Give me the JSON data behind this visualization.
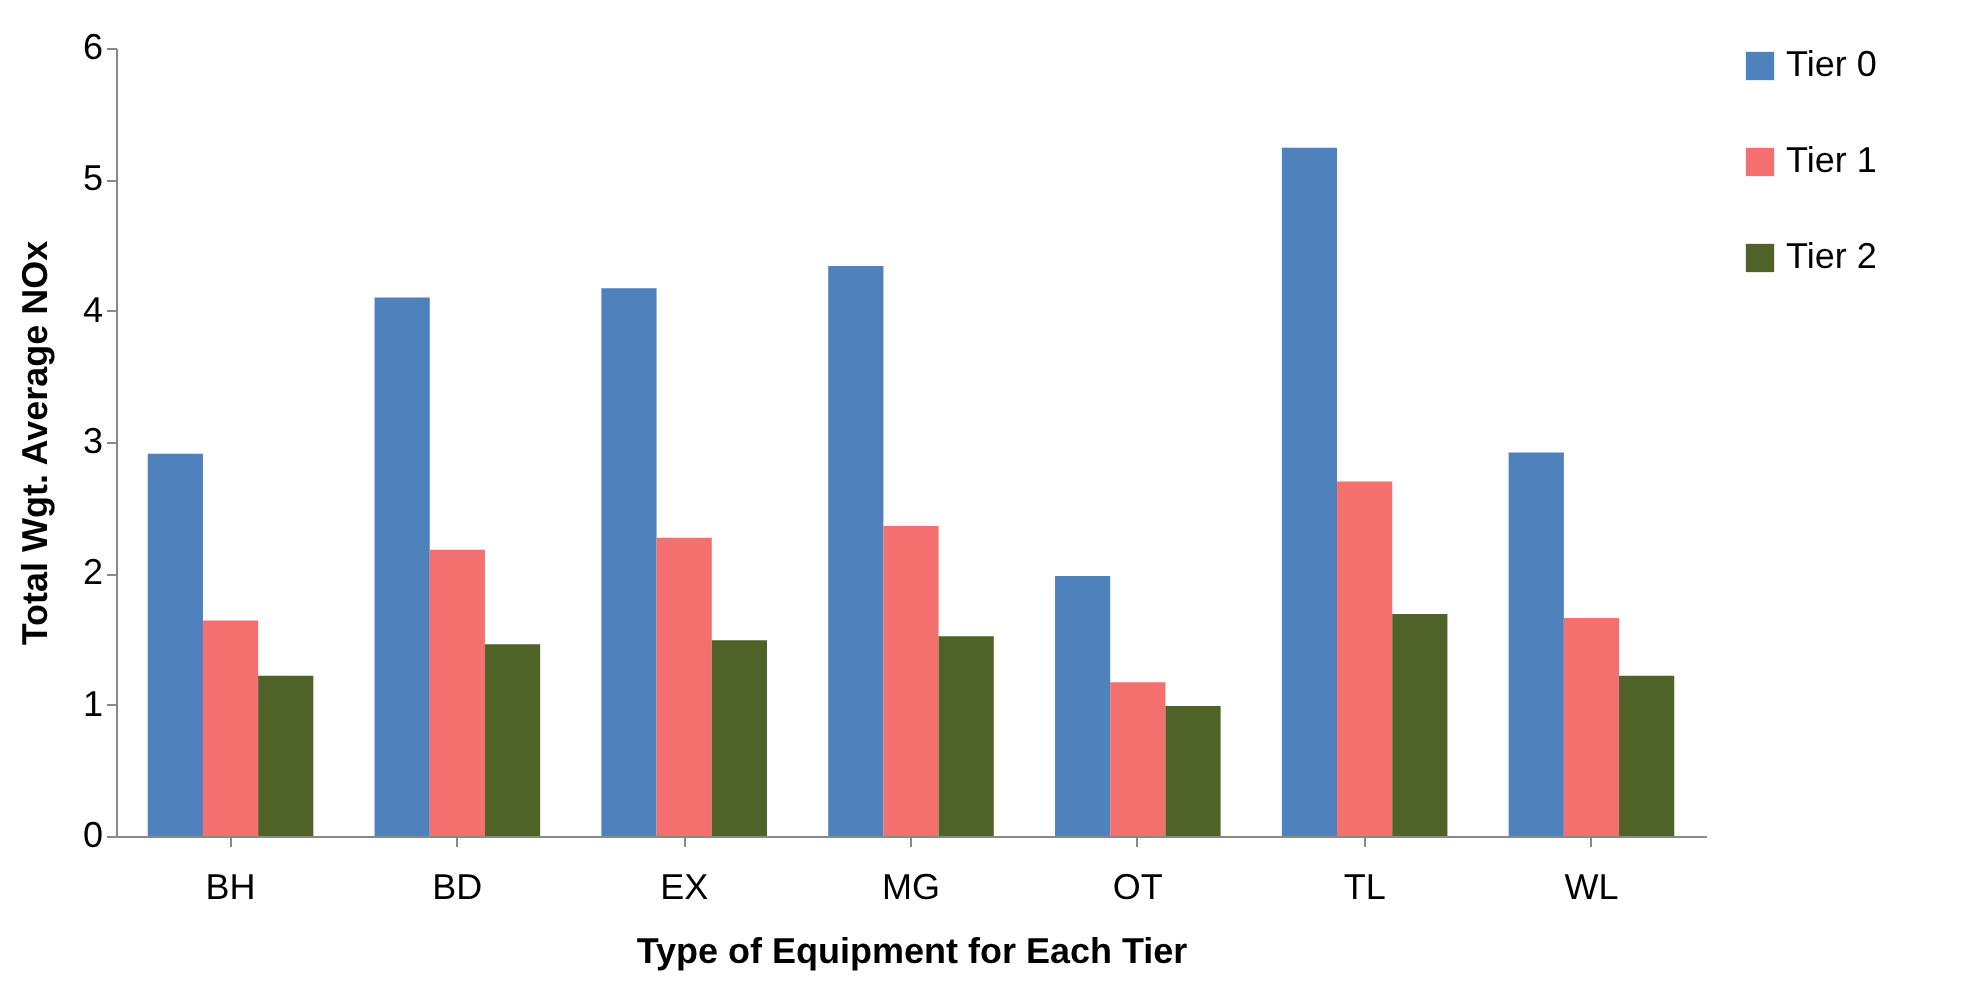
{
  "chart_data": {
    "type": "bar",
    "xlabel": "Type of Equipment for Each Tier",
    "ylabel": "Total Wgt. Average NOx",
    "categories": [
      "BH",
      "BD",
      "EX",
      "MG",
      "OT",
      "TL",
      "WL"
    ],
    "series": [
      {
        "name": "Tier 0",
        "color": "#4f81bd",
        "values": [
          2.91,
          4.1,
          4.17,
          4.34,
          1.98,
          5.24,
          2.92
        ]
      },
      {
        "name": "Tier 1",
        "color": "#f4706f",
        "values": [
          1.64,
          2.18,
          2.27,
          2.36,
          1.17,
          2.7,
          1.66
        ]
      },
      {
        "name": "Tier 2",
        "color": "#4f6228",
        "values": [
          1.22,
          1.46,
          1.49,
          1.52,
          0.99,
          1.69,
          1.22
        ]
      }
    ],
    "ylim": [
      0,
      6
    ],
    "yticks": [
      0,
      1,
      2,
      3,
      4,
      5,
      6
    ],
    "grid": false,
    "legend": "right"
  }
}
